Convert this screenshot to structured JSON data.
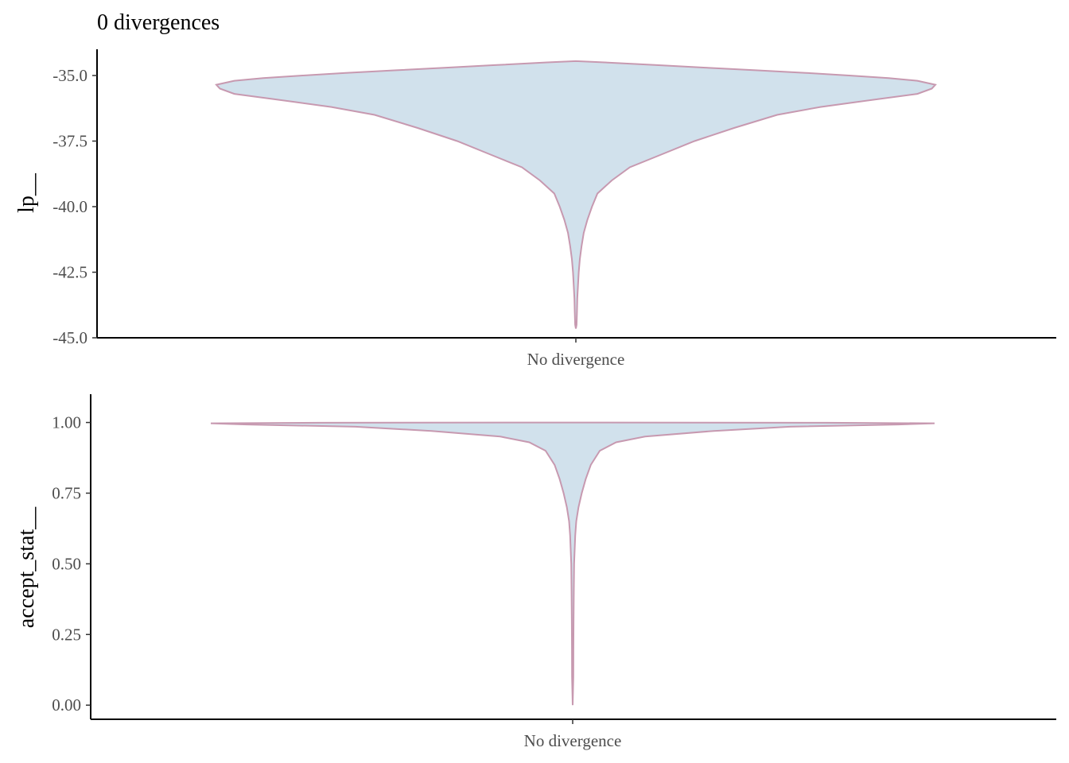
{
  "title": "0 divergences",
  "chart_data": [
    {
      "type": "violin",
      "ylabel": "lp__",
      "categories": [
        "No divergence"
      ],
      "ylim": [
        -45.0,
        -34.0
      ],
      "yticks": [
        -45.0,
        -42.5,
        -40.0,
        -37.5,
        -35.0
      ],
      "ytick_labels": [
        "-45.0",
        "-42.5",
        "-40.0",
        "-37.5",
        "-35.0"
      ],
      "grid": false,
      "density_profile": [
        {
          "y": -34.45,
          "w": 0.0
        },
        {
          "y": -34.5,
          "w": 0.08
        },
        {
          "y": -34.6,
          "w": 0.22
        },
        {
          "y": -34.7,
          "w": 0.36
        },
        {
          "y": -34.8,
          "w": 0.5
        },
        {
          "y": -34.9,
          "w": 0.64
        },
        {
          "y": -35.0,
          "w": 0.76
        },
        {
          "y": -35.1,
          "w": 0.87
        },
        {
          "y": -35.2,
          "w": 0.95
        },
        {
          "y": -35.35,
          "w": 1.0
        },
        {
          "y": -35.5,
          "w": 0.99
        },
        {
          "y": -35.7,
          "w": 0.95
        },
        {
          "y": -35.9,
          "w": 0.84
        },
        {
          "y": -36.2,
          "w": 0.68
        },
        {
          "y": -36.5,
          "w": 0.56
        },
        {
          "y": -37.0,
          "w": 0.44
        },
        {
          "y": -37.5,
          "w": 0.33
        },
        {
          "y": -38.0,
          "w": 0.24
        },
        {
          "y": -38.5,
          "w": 0.15
        },
        {
          "y": -39.0,
          "w": 0.1
        },
        {
          "y": -39.5,
          "w": 0.06
        },
        {
          "y": -40.0,
          "w": 0.045
        },
        {
          "y": -40.5,
          "w": 0.032
        },
        {
          "y": -41.0,
          "w": 0.022
        },
        {
          "y": -41.5,
          "w": 0.016
        },
        {
          "y": -42.0,
          "w": 0.011
        },
        {
          "y": -42.5,
          "w": 0.008
        },
        {
          "y": -43.0,
          "w": 0.006
        },
        {
          "y": -43.5,
          "w": 0.004
        },
        {
          "y": -44.0,
          "w": 0.003
        },
        {
          "y": -44.5,
          "w": 0.002
        },
        {
          "y": -44.65,
          "w": 0.0
        }
      ]
    },
    {
      "type": "violin",
      "ylabel": "accept_stat__",
      "categories": [
        "No divergence"
      ],
      "ylim": [
        -0.05,
        1.1
      ],
      "yticks": [
        0.0,
        0.25,
        0.5,
        0.75,
        1.0
      ],
      "ytick_labels": [
        "0.00",
        "0.25",
        "0.50",
        "0.75",
        "1.00"
      ],
      "grid": false,
      "density_profile": [
        {
          "y": 1.0,
          "w": 0.0
        },
        {
          "y": 0.999,
          "w": 0.7
        },
        {
          "y": 0.997,
          "w": 1.0
        },
        {
          "y": 0.993,
          "w": 0.9
        },
        {
          "y": 0.985,
          "w": 0.6
        },
        {
          "y": 0.97,
          "w": 0.39
        },
        {
          "y": 0.95,
          "w": 0.2
        },
        {
          "y": 0.93,
          "w": 0.12
        },
        {
          "y": 0.9,
          "w": 0.075
        },
        {
          "y": 0.85,
          "w": 0.05
        },
        {
          "y": 0.8,
          "w": 0.036
        },
        {
          "y": 0.75,
          "w": 0.025
        },
        {
          "y": 0.7,
          "w": 0.016
        },
        {
          "y": 0.65,
          "w": 0.01
        },
        {
          "y": 0.6,
          "w": 0.007
        },
        {
          "y": 0.5,
          "w": 0.004
        },
        {
          "y": 0.4,
          "w": 0.003
        },
        {
          "y": 0.3,
          "w": 0.0025
        },
        {
          "y": 0.2,
          "w": 0.002
        },
        {
          "y": 0.1,
          "w": 0.0018
        },
        {
          "y": 0.0,
          "w": 0.0
        }
      ]
    }
  ],
  "colors": {
    "fill": "#d1e1ec",
    "outline": "#c799b0"
  }
}
